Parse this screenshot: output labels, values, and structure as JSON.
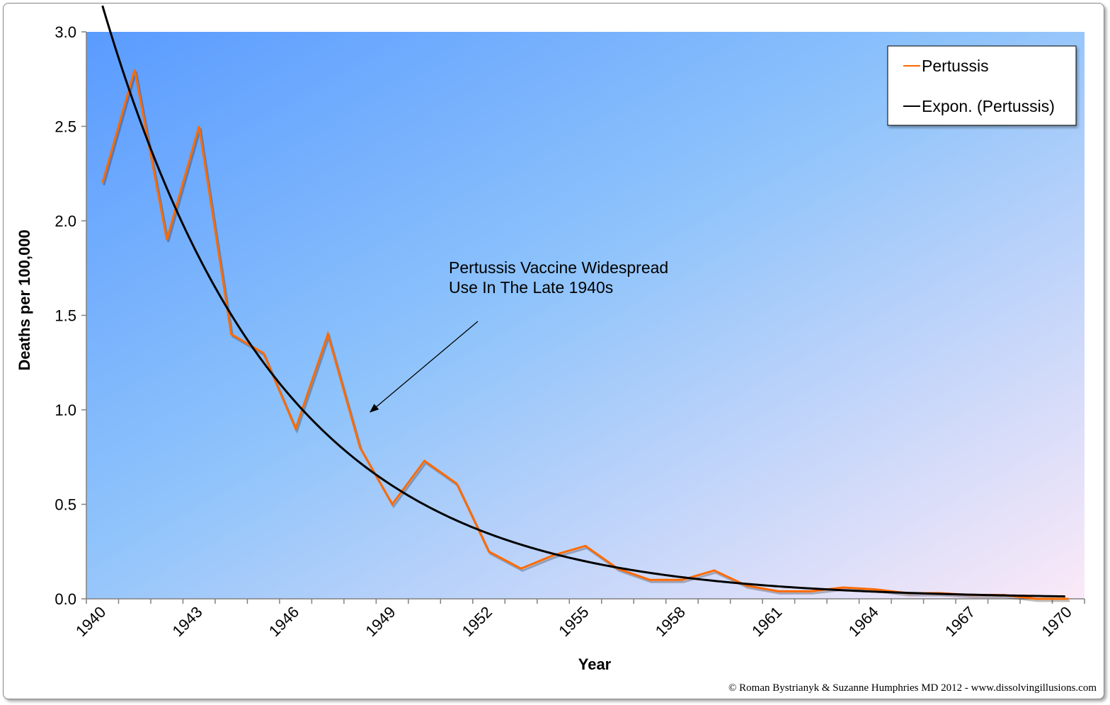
{
  "chart_data": {
    "type": "line",
    "xlabel": "Year",
    "ylabel": "Deaths per 100,000",
    "ylim": [
      0,
      3.0
    ],
    "yticks": [
      "0.0",
      "0.5",
      "1.0",
      "1.5",
      "2.0",
      "2.5",
      "3.0"
    ],
    "xtick_labels": [
      "1940",
      "1943",
      "1946",
      "1949",
      "1952",
      "1955",
      "1958",
      "1961",
      "1964",
      "1967",
      "1970"
    ],
    "categories": [
      1940,
      1941,
      1942,
      1943,
      1944,
      1945,
      1946,
      1947,
      1948,
      1949,
      1950,
      1951,
      1952,
      1953,
      1954,
      1955,
      1956,
      1957,
      1958,
      1959,
      1960,
      1961,
      1962,
      1963,
      1964,
      1965,
      1966,
      1967,
      1968,
      1969,
      1970
    ],
    "series": [
      {
        "name": "Pertussis",
        "color": "#ff6a00",
        "values": [
          2.2,
          2.8,
          1.9,
          2.5,
          1.4,
          1.3,
          0.9,
          1.4,
          0.8,
          0.5,
          0.73,
          0.61,
          0.25,
          0.16,
          0.23,
          0.28,
          0.16,
          0.1,
          0.1,
          0.15,
          0.07,
          0.04,
          0.04,
          0.06,
          0.05,
          0.03,
          0.03,
          0.02,
          0.02,
          0.0,
          0.0
        ]
      },
      {
        "name": "Expon. (Pertussis)",
        "color": "#000000",
        "trendline": "exponential"
      }
    ],
    "legend": {
      "placement": "top-right",
      "entries": [
        "Pertussis",
        "Expon. (Pertussis)"
      ]
    },
    "annotation": {
      "lines": [
        "Pertussis  Vaccine Widespread",
        "Use In The Late 1940s"
      ],
      "arrow": true
    },
    "grid": false,
    "background": {
      "gradient_from": "#5a9bff",
      "gradient_to": "#fbe9f8"
    }
  },
  "footer": {
    "copyright": "© Roman Bystrianyk & Suzanne Humphries MD 2012 - www.dissolvingillusions.com"
  }
}
